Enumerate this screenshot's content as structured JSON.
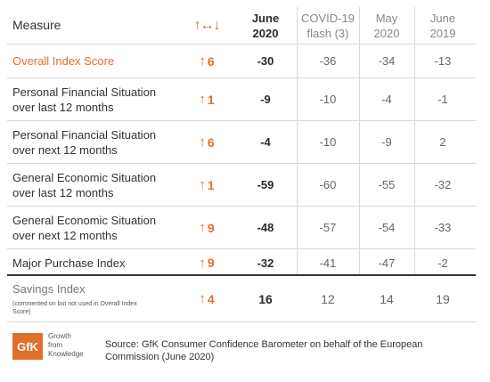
{
  "header": {
    "measure": "Measure",
    "change_icon": "↑↔↓",
    "col_jun20": [
      "June",
      "2020"
    ],
    "col_covid": [
      "COVID-19",
      "flash (3)"
    ],
    "col_may20": [
      "May",
      "2020"
    ],
    "col_jun19": [
      "June",
      "2019"
    ]
  },
  "rows": [
    {
      "measure": [
        "Overall Index Score"
      ],
      "change": "6",
      "direction": "up",
      "jun20": "-30",
      "covid": "-36",
      "may20": "-34",
      "jun19": "-13"
    },
    {
      "measure": [
        "Personal Financial Situation",
        "over last 12 months"
      ],
      "change": "1",
      "direction": "up",
      "jun20": "-9",
      "covid": "-10",
      "may20": "-4",
      "jun19": "-1"
    },
    {
      "measure": [
        "Personal Financial Situation",
        "over next 12 months"
      ],
      "change": "6",
      "direction": "up",
      "jun20": "-4",
      "covid": "-10",
      "may20": "-9",
      "jun19": "2"
    },
    {
      "measure": [
        "General Economic Situation",
        "over last 12 months"
      ],
      "change": "1",
      "direction": "up",
      "jun20": "-59",
      "covid": "-60",
      "may20": "-55",
      "jun19": "-32"
    },
    {
      "measure": [
        "General Economic Situation",
        "over next 12 months"
      ],
      "change": "9",
      "direction": "up",
      "jun20": "-48",
      "covid": "-57",
      "may20": "-54",
      "jun19": "-33"
    },
    {
      "measure": [
        "Major Purchase Index"
      ],
      "change": "9",
      "direction": "up",
      "jun20": "-32",
      "covid": "-41",
      "may20": "-47",
      "jun19": "-2"
    }
  ],
  "savings": {
    "measure": "Savings Index",
    "note": "(commented on but not used in Overall Index Score)",
    "change": "4",
    "direction": "up",
    "jun20": "16",
    "covid": "12",
    "may20": "14",
    "jun19": "19"
  },
  "footer": {
    "logo": "GfK",
    "tagline": [
      "Growth",
      "from",
      "Knowledge"
    ],
    "source": "Source: GfK Consumer Confidence Barometer on behalf of the European Commission (June 2020)"
  },
  "colors": {
    "accent": "#e0702a",
    "text": "#333333",
    "rule": "#d9d9d9"
  }
}
